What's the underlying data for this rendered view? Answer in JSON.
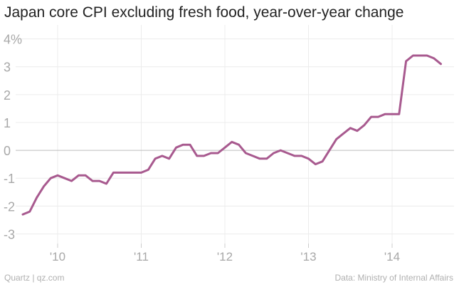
{
  "chart_data": {
    "type": "line",
    "title": "Japan core CPI excluding fresh food, year-over-year change",
    "ylim": [
      -3.5,
      4.5
    ],
    "y_ticks": [
      {
        "value": 4,
        "label": "4%"
      },
      {
        "value": 3,
        "label": "3"
      },
      {
        "value": 2,
        "label": "2"
      },
      {
        "value": 1,
        "label": "1"
      },
      {
        "value": 0,
        "label": "0"
      },
      {
        "value": -1,
        "label": "-1"
      },
      {
        "value": -2,
        "label": "-2"
      },
      {
        "value": -3,
        "label": "-3"
      }
    ],
    "x_ticks": [
      {
        "value": "2010-01",
        "label": "'10"
      },
      {
        "value": "2011-01",
        "label": "'11"
      },
      {
        "value": "2012-01",
        "label": "'12"
      },
      {
        "value": "2013-01",
        "label": "'13"
      },
      {
        "value": "2014-01",
        "label": "'14"
      }
    ],
    "grid": true,
    "color": "#a85a8f",
    "x": [
      "2009-08",
      "2009-09",
      "2009-10",
      "2009-11",
      "2009-12",
      "2010-01",
      "2010-02",
      "2010-03",
      "2010-04",
      "2010-05",
      "2010-06",
      "2010-07",
      "2010-08",
      "2010-09",
      "2010-10",
      "2010-11",
      "2010-12",
      "2011-01",
      "2011-02",
      "2011-03",
      "2011-04",
      "2011-05",
      "2011-06",
      "2011-07",
      "2011-08",
      "2011-09",
      "2011-10",
      "2011-11",
      "2011-12",
      "2012-01",
      "2012-02",
      "2012-03",
      "2012-04",
      "2012-05",
      "2012-06",
      "2012-07",
      "2012-08",
      "2012-09",
      "2012-10",
      "2012-11",
      "2012-12",
      "2013-01",
      "2013-02",
      "2013-03",
      "2013-04",
      "2013-05",
      "2013-06",
      "2013-07",
      "2013-08",
      "2013-09",
      "2013-10",
      "2013-11",
      "2013-12",
      "2014-01",
      "2014-02",
      "2014-03",
      "2014-04",
      "2014-05",
      "2014-06",
      "2014-07",
      "2014-08"
    ],
    "values": [
      -2.3,
      -2.2,
      -1.7,
      -1.3,
      -1.0,
      -0.9,
      -1.0,
      -1.1,
      -0.9,
      -0.9,
      -1.1,
      -1.1,
      -1.2,
      -0.8,
      -0.8,
      -0.8,
      -0.8,
      -0.8,
      -0.7,
      -0.3,
      -0.2,
      -0.3,
      0.1,
      0.2,
      0.2,
      -0.2,
      -0.2,
      -0.1,
      -0.1,
      0.1,
      0.3,
      0.2,
      -0.1,
      -0.2,
      -0.3,
      -0.3,
      -0.1,
      0.0,
      -0.1,
      -0.2,
      -0.2,
      -0.3,
      -0.5,
      -0.4,
      0.0,
      0.4,
      0.6,
      0.8,
      0.7,
      0.9,
      1.2,
      1.2,
      1.3,
      1.3,
      1.3,
      3.2,
      3.4,
      3.4,
      3.4,
      3.3,
      3.1
    ]
  },
  "footer": {
    "source_left": "Quartz | qz.com",
    "source_right": "Data: Ministry of Internal Affairs"
  }
}
